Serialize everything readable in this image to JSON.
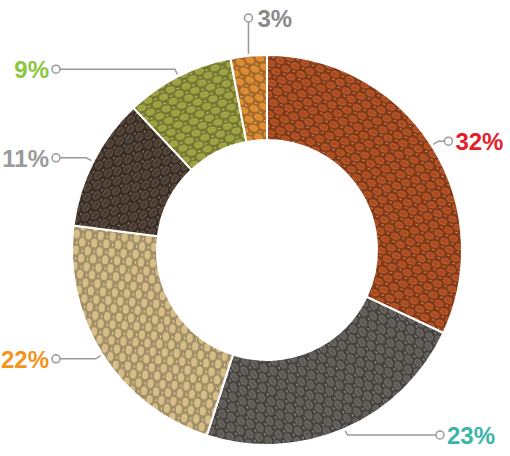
{
  "chart_data": {
    "type": "donut",
    "values": [
      32,
      23,
      22,
      11,
      9,
      3
    ],
    "value_labels": [
      "32%",
      "23%",
      "22%",
      "11%",
      "9%",
      "3%"
    ],
    "colors": [
      "#b04a1a",
      "#5e5a55",
      "#d8bd84",
      "#4b3b2f",
      "#9ea23c",
      "#e08a2c"
    ],
    "data_labels": true
  }
}
